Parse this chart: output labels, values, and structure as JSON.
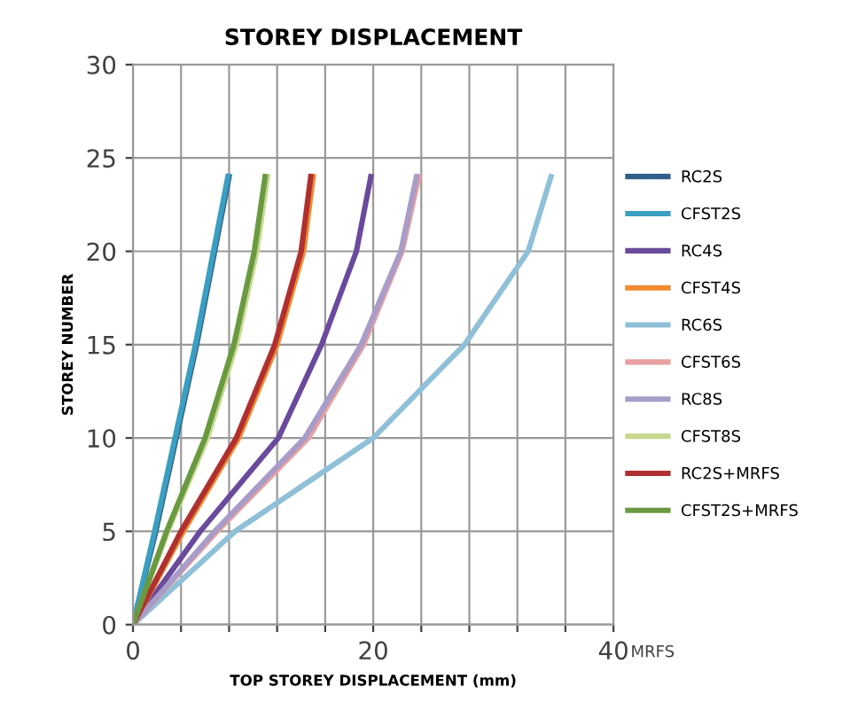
{
  "chart_data": {
    "type": "line",
    "title": "STOREY DISPLACEMENT",
    "xlabel": "TOP STOREY DISPLACEMENT (mm)",
    "ylabel": "STOREY NUMBER",
    "xlim": [
      0,
      40
    ],
    "xticks": [
      0,
      {
        "value": 4,
        "label": null
      },
      {
        "value": 8,
        "label": null
      },
      {
        "value": 12,
        "label": null
      },
      {
        "value": 16,
        "label": null
      },
      20,
      {
        "value": 24,
        "label": null
      },
      {
        "value": 28,
        "label": null
      },
      {
        "value": 32,
        "label": null
      },
      {
        "value": 36,
        "label": null
      },
      40
    ],
    "ylim": [
      0,
      30
    ],
    "yticks": [
      0,
      5,
      10,
      15,
      20,
      25,
      30
    ],
    "grid": true,
    "legend": "right",
    "marker": "none",
    "line_style": "solid",
    "annotations": [
      "MRFS"
    ],
    "series": [
      {
        "name": "RC2S",
        "color": "#2f5f8a",
        "x": [
          0,
          1.9,
          3.6,
          5.3,
          6.8,
          8.0
        ],
        "values": [
          0,
          5,
          10,
          15,
          20,
          24
        ]
      },
      {
        "name": "CFST2S",
        "color": "#3a9fc0",
        "x": [
          0,
          1.8,
          3.5,
          5.2,
          6.7,
          7.9
        ],
        "values": [
          0,
          5,
          10,
          15,
          20,
          24
        ]
      },
      {
        "name": "RC4S",
        "color": "#6a4a9c",
        "x": [
          0,
          5.6,
          12.1,
          15.7,
          18.6,
          19.8
        ],
        "values": [
          0,
          5,
          10,
          15,
          20,
          24
        ]
      },
      {
        "name": "CFST4S",
        "color": "#f08a30",
        "x": [
          0,
          4.2,
          8.8,
          12.0,
          14.2,
          15.0
        ],
        "values": [
          0,
          5,
          10,
          15,
          20,
          24
        ]
      },
      {
        "name": "RC6S",
        "color": "#8fc0d8",
        "x": [
          0,
          8.5,
          20.0,
          27.6,
          32.9,
          34.8
        ],
        "values": [
          0,
          5,
          10,
          15,
          20,
          24
        ]
      },
      {
        "name": "CFST6S",
        "color": "#e8a0a0",
        "x": [
          0,
          7.0,
          14.6,
          19.2,
          22.4,
          23.8
        ],
        "values": [
          0,
          5,
          10,
          15,
          20,
          24
        ]
      },
      {
        "name": "RC8S",
        "color": "#a89cc8",
        "x": [
          0,
          6.8,
          14.3,
          19.0,
          22.3,
          23.6
        ],
        "values": [
          0,
          5,
          10,
          15,
          20,
          24
        ]
      },
      {
        "name": "CFST8S",
        "color": "#c8d890",
        "x": [
          0,
          2.9,
          6.2,
          8.6,
          10.3,
          11.2
        ],
        "values": [
          0,
          5,
          10,
          15,
          20,
          24
        ]
      },
      {
        "name": "RC2S+MRFS",
        "color": "#b03030",
        "x": [
          0,
          4.0,
          8.6,
          11.8,
          14.0,
          14.8
        ],
        "values": [
          0,
          5,
          10,
          15,
          20,
          24
        ]
      },
      {
        "name": "CFST2S+MRFS",
        "color": "#6a9a40",
        "x": [
          0,
          2.8,
          6.0,
          8.4,
          10.1,
          11.0
        ],
        "values": [
          0,
          5,
          10,
          15,
          20,
          24
        ]
      }
    ]
  }
}
